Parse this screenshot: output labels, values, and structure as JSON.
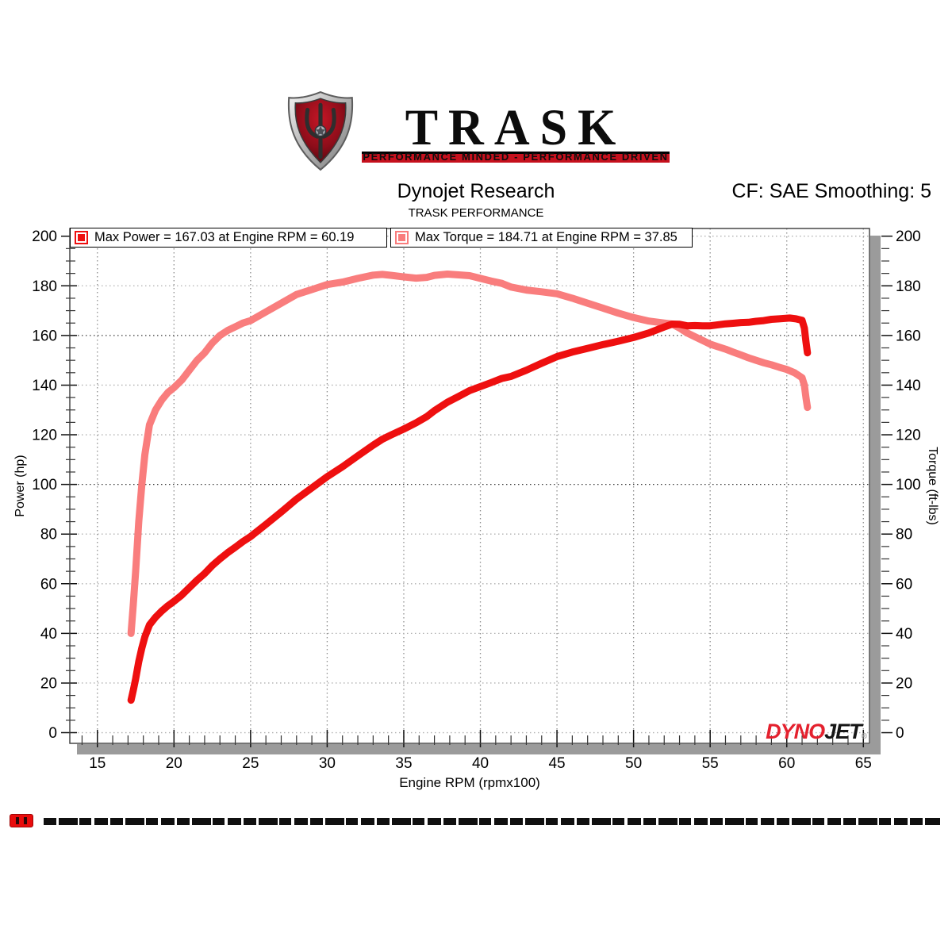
{
  "logo": {
    "brand": "TRASK",
    "tagline": "PERFORMANCE MINDED - PERFORMANCE DRIVEN"
  },
  "header": {
    "title": "Dynojet Research",
    "subtitle": "TRASK PERFORMANCE",
    "cf_label": "CF: SAE Smoothing: 5"
  },
  "legend": [
    {
      "label": "Max Power = 167.03 at Engine RPM = 60.19",
      "color": "#ee0f0f"
    },
    {
      "label": "Max Torque = 184.71 at Engine RPM = 37.85",
      "color": "#f97d7d"
    }
  ],
  "watermark": {
    "dyno": "DYNO",
    "jet": "JET",
    "dyno_color": "#e4212e",
    "jet_color": "#161616"
  },
  "chart_data": {
    "type": "line",
    "title": "Dynojet Research",
    "subtitle": "TRASK PERFORMANCE",
    "xlabel": "Engine RPM (rpmx100)",
    "ylabel_left": "Power (hp)",
    "ylabel_right": "Torque (ft-lbs)",
    "xlim": [
      13.2,
      65.4
    ],
    "ylim": [
      -4.3,
      203.1
    ],
    "xticks": [
      15,
      20,
      25,
      30,
      35,
      40,
      45,
      50,
      55,
      60,
      65
    ],
    "yticks": [
      0,
      20,
      40,
      60,
      80,
      100,
      120,
      140,
      160,
      180,
      200
    ],
    "x_minor_step": 1,
    "y_minor_step": 5,
    "grid": "dotted",
    "dark_gridlines": [
      100,
      160
    ],
    "legend_position": "top",
    "max_power": {
      "value": 167.03,
      "rpm": 60.19
    },
    "max_torque": {
      "value": 184.71,
      "rpm": 37.85
    },
    "series": [
      {
        "name": "Power (hp)",
        "axis": "left",
        "color": "#ee0f0f",
        "points": [
          [
            17.2,
            13.1
          ],
          [
            17.35,
            17.2
          ],
          [
            17.5,
            21.7
          ],
          [
            17.7,
            28.6
          ],
          [
            17.9,
            34.1
          ],
          [
            18.1,
            38.6
          ],
          [
            18.4,
            43.4
          ],
          [
            18.8,
            46.5
          ],
          [
            19.2,
            49
          ],
          [
            19.6,
            51.1
          ],
          [
            20,
            52.9
          ],
          [
            20.5,
            55.4
          ],
          [
            21,
            58.4
          ],
          [
            21.5,
            61.4
          ],
          [
            22,
            64.1
          ],
          [
            22.5,
            67.3
          ],
          [
            23,
            70
          ],
          [
            23.5,
            72.5
          ],
          [
            24,
            74.7
          ],
          [
            24.5,
            77
          ],
          [
            25,
            79
          ],
          [
            26,
            83.9
          ],
          [
            27,
            88.9
          ],
          [
            28,
            94.1
          ],
          [
            29,
            98.6
          ],
          [
            30,
            103.1
          ],
          [
            31,
            107.1
          ],
          [
            32,
            111.5
          ],
          [
            33,
            115.8
          ],
          [
            33.6,
            118.2
          ],
          [
            34.2,
            120
          ],
          [
            35,
            122.3
          ],
          [
            35.8,
            124.8
          ],
          [
            36.5,
            127.3
          ],
          [
            37,
            129.7
          ],
          [
            37.85,
            133.1
          ],
          [
            38.6,
            135.5
          ],
          [
            39.3,
            137.8
          ],
          [
            40,
            139.4
          ],
          [
            40.7,
            141
          ],
          [
            41.4,
            142.7
          ],
          [
            42,
            143.5
          ],
          [
            43,
            146
          ],
          [
            44,
            148.8
          ],
          [
            45,
            151.5
          ],
          [
            46,
            153.3
          ],
          [
            47,
            154.8
          ],
          [
            48,
            156.3
          ],
          [
            49,
            157.7
          ],
          [
            50,
            159.2
          ],
          [
            51,
            161
          ],
          [
            52,
            163.4
          ],
          [
            52.52,
            164.6
          ],
          [
            53,
            164.5
          ],
          [
            53.5,
            163.9
          ],
          [
            54,
            164
          ],
          [
            54.5,
            163.9
          ],
          [
            55,
            163.9
          ],
          [
            55.5,
            164.3
          ],
          [
            56,
            164.7
          ],
          [
            56.5,
            164.9
          ],
          [
            57,
            165.2
          ],
          [
            57.5,
            165.3
          ],
          [
            58,
            165.7
          ],
          [
            58.5,
            166
          ],
          [
            59,
            166.5
          ],
          [
            59.5,
            166.7
          ],
          [
            60.19,
            167.03
          ],
          [
            60.6,
            166.7
          ],
          [
            61,
            166.1
          ],
          [
            61.15,
            163
          ],
          [
            61.25,
            157.5
          ],
          [
            61.35,
            153
          ]
        ]
      },
      {
        "name": "Torque (ft-lbs)",
        "axis": "right",
        "color": "#f97d7d",
        "points": [
          [
            17.2,
            40
          ],
          [
            17.35,
            52
          ],
          [
            17.5,
            65
          ],
          [
            17.7,
            85
          ],
          [
            17.9,
            100
          ],
          [
            18.1,
            112
          ],
          [
            18.4,
            124
          ],
          [
            18.8,
            130
          ],
          [
            19.2,
            134
          ],
          [
            19.6,
            137
          ],
          [
            20,
            139
          ],
          [
            20.5,
            142
          ],
          [
            21,
            146
          ],
          [
            21.5,
            150
          ],
          [
            22,
            153
          ],
          [
            22.5,
            157
          ],
          [
            23,
            160
          ],
          [
            23.5,
            162
          ],
          [
            24,
            163.5
          ],
          [
            24.5,
            165
          ],
          [
            25,
            166
          ],
          [
            26,
            169.5
          ],
          [
            27,
            173
          ],
          [
            28,
            176.5
          ],
          [
            29,
            178.5
          ],
          [
            30,
            180.5
          ],
          [
            31,
            181.5
          ],
          [
            32,
            183
          ],
          [
            33,
            184.3
          ],
          [
            33.6,
            184.6
          ],
          [
            34.2,
            184.2
          ],
          [
            35,
            183.6
          ],
          [
            35.8,
            183.1
          ],
          [
            36.5,
            183.4
          ],
          [
            37,
            184.2
          ],
          [
            37.85,
            184.71
          ],
          [
            38.6,
            184.4
          ],
          [
            39.3,
            184.1
          ],
          [
            40,
            183
          ],
          [
            40.7,
            181.9
          ],
          [
            41.4,
            181
          ],
          [
            42,
            179.5
          ],
          [
            43,
            178.3
          ],
          [
            44,
            177.6
          ],
          [
            45,
            176.8
          ],
          [
            46,
            175
          ],
          [
            47,
            173
          ],
          [
            48,
            171
          ],
          [
            49,
            169
          ],
          [
            50,
            167.2
          ],
          [
            51,
            165.8
          ],
          [
            52,
            165
          ],
          [
            52.52,
            164.6
          ],
          [
            53,
            163
          ],
          [
            53.5,
            161
          ],
          [
            54,
            159.5
          ],
          [
            54.5,
            158
          ],
          [
            55,
            156.5
          ],
          [
            55.5,
            155.5
          ],
          [
            56,
            154.5
          ],
          [
            56.5,
            153.3
          ],
          [
            57,
            152.2
          ],
          [
            57.5,
            151
          ],
          [
            58,
            150
          ],
          [
            58.5,
            149
          ],
          [
            59,
            148.2
          ],
          [
            59.5,
            147.2
          ],
          [
            60,
            146.3
          ],
          [
            60.5,
            145
          ],
          [
            61,
            143
          ],
          [
            61.15,
            140
          ],
          [
            61.25,
            135
          ],
          [
            61.35,
            131
          ]
        ]
      }
    ]
  },
  "footer": {
    "chip_color": "#e90c0c"
  }
}
